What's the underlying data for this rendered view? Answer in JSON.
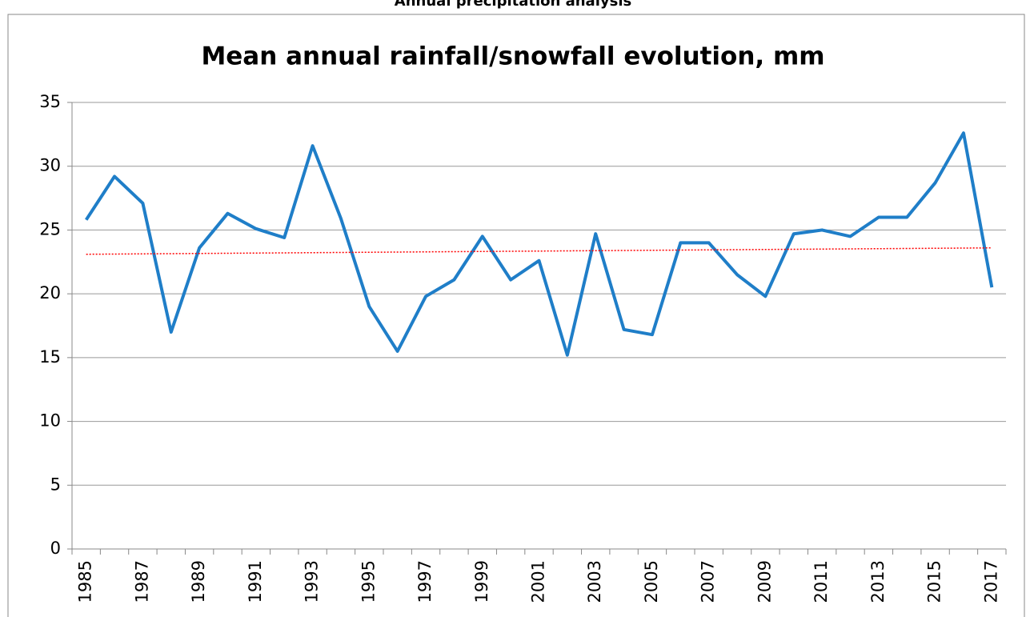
{
  "header": {
    "title": "Annual precipitation analysis"
  },
  "chart_data": {
    "type": "line",
    "title": "Mean annual rainfall/snowfall evolution, mm",
    "categories": [
      "1985",
      null,
      "1987",
      null,
      "1989",
      null,
      "1991",
      null,
      "1993",
      null,
      "1995",
      null,
      "1997",
      null,
      "1999",
      null,
      "2001",
      null,
      "2003",
      null,
      "2005",
      null,
      "2007",
      null,
      "2009",
      null,
      "2011",
      null,
      "2013",
      null,
      "2015",
      null,
      "2017"
    ],
    "series": [
      {
        "color": "#1f7ec8",
        "values": [
          25.8,
          29.2,
          27.1,
          17.0,
          23.6,
          26.3,
          25.1,
          24.4,
          31.6,
          25.9,
          19.0,
          15.5,
          19.8,
          21.1,
          24.5,
          21.1,
          22.6,
          15.2,
          24.7,
          17.2,
          16.8,
          24.0,
          24.0,
          21.5,
          19.8,
          24.7,
          25.0,
          24.5,
          26.0,
          26.0,
          28.7,
          32.6,
          20.5
        ]
      }
    ],
    "trendline": {
      "color": "#ff0000",
      "values": [
        23.1,
        23.6
      ]
    },
    "ylim": [
      0,
      35
    ],
    "yticks": [
      0,
      5,
      10,
      15,
      20,
      25,
      30,
      35
    ],
    "grid": true
  }
}
